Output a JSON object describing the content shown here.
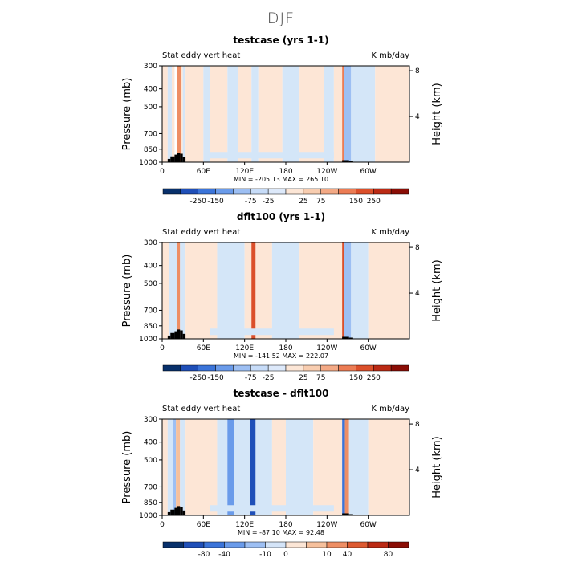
{
  "page_title": "DJF",
  "chart_data": [
    {
      "type": "heatmap",
      "title": "testcase (yrs 1-1)",
      "left_label": "Stat eddy vert heat",
      "right_label": "K mb/day",
      "ylabel": "Pressure (mb)",
      "ylabel_right": "Height (km)",
      "y_ticks": [
        "300",
        "400",
        "500",
        "700",
        "850",
        "1000"
      ],
      "y_tick_values": [
        300,
        400,
        500,
        700,
        850,
        1000
      ],
      "height_ticks": [
        "8",
        "4"
      ],
      "height_tick_values": [
        8,
        4
      ],
      "x_ticks": [
        "0",
        "60E",
        "120E",
        "180",
        "120W",
        "60W"
      ],
      "x_tick_values": [
        0,
        60,
        120,
        180,
        240,
        300
      ],
      "xlim": [
        0,
        360
      ],
      "ylim": [
        1000,
        300
      ],
      "stats": "MIN = -205.13   MAX = 265.10",
      "colorbar": {
        "labels": [
          "-250",
          "-150",
          "-75",
          "-25",
          "25",
          "75",
          "150",
          "250"
        ],
        "colors": [
          "#08306b",
          "#1f4fb8",
          "#3b74d9",
          "#6a9bea",
          "#9dbff3",
          "#c7dcf8",
          "#dde9fa",
          "#fce6d6",
          "#f8cdb0",
          "#f3a985",
          "#ec7c54",
          "#db4f2a",
          "#bb2a14",
          "#8a0d05"
        ]
      }
    },
    {
      "type": "heatmap",
      "title": "dflt100 (yrs 1-1)",
      "left_label": "Stat eddy vert heat",
      "right_label": "K mb/day",
      "ylabel": "Pressure (mb)",
      "ylabel_right": "Height (km)",
      "y_ticks": [
        "300",
        "400",
        "500",
        "700",
        "850",
        "1000"
      ],
      "y_tick_values": [
        300,
        400,
        500,
        700,
        850,
        1000
      ],
      "height_ticks": [
        "8",
        "4"
      ],
      "height_tick_values": [
        8,
        4
      ],
      "x_ticks": [
        "0",
        "60E",
        "120E",
        "180",
        "120W",
        "60W"
      ],
      "x_tick_values": [
        0,
        60,
        120,
        180,
        240,
        300
      ],
      "xlim": [
        0,
        360
      ],
      "ylim": [
        1000,
        300
      ],
      "stats": "MIN = -141.52   MAX = 222.07",
      "colorbar": {
        "labels": [
          "-250",
          "-150",
          "-75",
          "-25",
          "25",
          "75",
          "150",
          "250"
        ],
        "colors": [
          "#08306b",
          "#1f4fb8",
          "#3b74d9",
          "#6a9bea",
          "#9dbff3",
          "#c7dcf8",
          "#dde9fa",
          "#fce6d6",
          "#f8cdb0",
          "#f3a985",
          "#ec7c54",
          "#db4f2a",
          "#bb2a14",
          "#8a0d05"
        ]
      }
    },
    {
      "type": "heatmap",
      "title": "testcase - dflt100",
      "left_label": "Stat eddy vert heat",
      "right_label": "K mb/day",
      "ylabel": "Pressure (mb)",
      "ylabel_right": "Height (km)",
      "y_ticks": [
        "300",
        "400",
        "500",
        "700",
        "850",
        "1000"
      ],
      "y_tick_values": [
        300,
        400,
        500,
        700,
        850,
        1000
      ],
      "height_ticks": [
        "8",
        "4"
      ],
      "height_tick_values": [
        8,
        4
      ],
      "x_ticks": [
        "0",
        "60E",
        "120E",
        "180",
        "120W",
        "60W"
      ],
      "x_tick_values": [
        0,
        60,
        120,
        180,
        240,
        300
      ],
      "xlim": [
        0,
        360
      ],
      "ylim": [
        1000,
        300
      ],
      "stats": "MIN = -87.10   MAX =  92.48",
      "colorbar": {
        "labels": [
          "-80",
          "-40",
          "-10",
          "0",
          "10",
          "40",
          "80"
        ],
        "colors": [
          "#08306b",
          "#1f4fb8",
          "#3b74d9",
          "#6a9bea",
          "#9dbff3",
          "#d4e4f8",
          "#fce6d6",
          "#f6c09c",
          "#ee8e64",
          "#dd5a31",
          "#bb2a14",
          "#8a0d05"
        ]
      }
    }
  ]
}
